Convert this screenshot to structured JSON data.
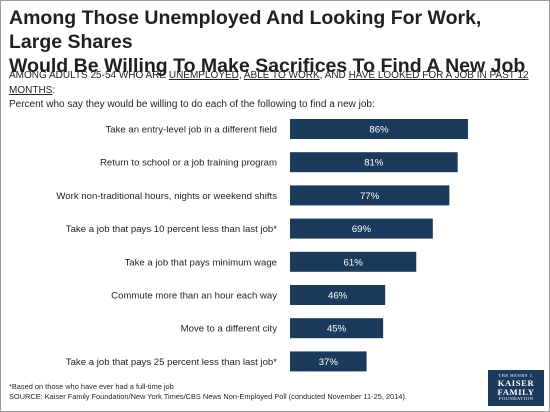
{
  "title_line1": "Among Those Unemployed And Looking For Work, Large Shares",
  "title_line2": "Would Be Willing To Make Sacrifices To Find A New Job",
  "subtitle": {
    "part1": "AMONG ADULTS 25-54 WHO ARE ",
    "u1": "UNEMPLOYED",
    "part2": ", ",
    "u2": "ABLE TO WORK",
    "part3": ", AND ",
    "u3": "HAVE LOOKED FOR A JOB IN PAST 12 MONTHS",
    "part4": ":",
    "line2": "Percent who say they would be willing to do each of the following to find a new job:"
  },
  "chart_data": {
    "type": "bar",
    "orientation": "horizontal",
    "categories": [
      "Take an entry-level job in a different field",
      "Return to school or a job training program",
      "Work non-traditional hours, nights or weekend shifts",
      "Take a job that pays 10 percent less than last job*",
      "Take a job that pays minimum wage",
      "Commute more than an hour each way",
      "Move to a different city",
      "Take a job that pays 25 percent less than last job*"
    ],
    "values": [
      86,
      81,
      77,
      69,
      61,
      46,
      45,
      37
    ],
    "value_labels": [
      "86%",
      "81%",
      "77%",
      "69%",
      "61%",
      "46%",
      "45%",
      "37%"
    ],
    "xlim": [
      0,
      100
    ],
    "grid": false,
    "bar_color": "#1b3a5c",
    "label_color": "#ffffff"
  },
  "footnote_line1": "*Based on those who have ever had a full-time job",
  "footnote_line2": "SOURCE: Kaiser Family Foundation/New York Times/CBS News Non-Employed Poll (conducted November 11-25, 2014).",
  "logo": {
    "line1": "THE HENRY J.",
    "line2": "KAISER",
    "line3": "FAMILY",
    "line4": "FOUNDATION"
  }
}
